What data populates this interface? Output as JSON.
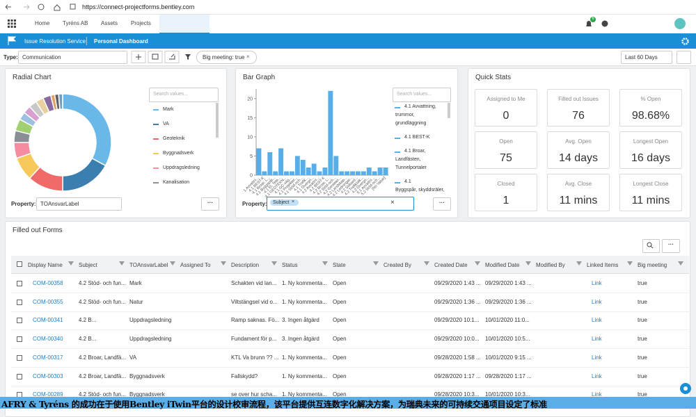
{
  "browser": {
    "url": "https://connect-projectforms.bentley.com"
  },
  "nav": {
    "items": [
      "Home",
      "Tyréns AB",
      "Assets",
      "Projects"
    ],
    "badge": "6"
  },
  "subnav": {
    "service": "Issue Resolution Service",
    "page": "Personal Dashboard"
  },
  "toolbar": {
    "type_label": "Type:",
    "type_value": "Communication",
    "filter_chip": "Big meeting: true",
    "date_range": "Last 60 Days"
  },
  "radial_chart": {
    "title": "Radial Chart",
    "search": "Search values...",
    "legend": [
      "Mark",
      "VA",
      "Geoteknik",
      "Byggnadsverk",
      "Uppdragsledning",
      "Kanalisation"
    ],
    "values": [
      25,
      13,
      9,
      6,
      4,
      3,
      3,
      2,
      2,
      2,
      2,
      2,
      1,
      1,
      1
    ],
    "colors": [
      "#6ab8e8",
      "#3a7fb0",
      "#f06a6a",
      "#f7c85a",
      "#f58ca0",
      "#8a8f96",
      "#a0d070",
      "#9ec0e0",
      "#d8a0d0",
      "#c8c8c8",
      "#e8d0a0",
      "#8a6aa0",
      "#e0a060",
      "#606060",
      "#70a0c0"
    ],
    "property_label": "Property:",
    "property_value": "TOAnsvarLabel"
  },
  "bar_graph": {
    "title": "Bar Graph",
    "search": "Search values...",
    "color": "#5aaee8",
    "categories": [
      "1.Avvattni...",
      "4.1 BEST-K",
      "4.1 Broar, L...",
      "4.1 Byggspår...",
      "4.1 El, Tele...",
      "4.1 GEOTEKN...",
      "4.1 GC-väg...",
      "4.1 Projekter...",
      "4.1 Stöd-och...",
      "4.1 Trafik...",
      "4.1 Övergri...",
      "4.2 Avvattni...",
      "4.2 BEST-K",
      "4.2 Broar, L...",
      "4.2 Stöd-och...",
      "4.2 Geotekn...",
      "4.2 Landskap...",
      "4.2 Ledningar...",
      "4.2 Sidoanl...",
      "4.2 Trafiksäk...",
      "4.2 Övergri...",
      "5.1 Avvattni...",
      "5.2 Stöd-och...",
      "[No Value]"
    ],
    "values": [
      7,
      1,
      6,
      1,
      7,
      1,
      1,
      5,
      4,
      2,
      3,
      1,
      2,
      22,
      5,
      1,
      1,
      1,
      1,
      1,
      2,
      1,
      2,
      2
    ],
    "ylim": [
      0,
      22.5
    ],
    "yticks": [
      0,
      5,
      10,
      15,
      20
    ],
    "legend": [
      "4.1 Avvattning,",
      "trummor,",
      "grundläggning",
      "4.1 BEST-K",
      "4.1 Broar,",
      "Landfästen,",
      "Tunnelportaler",
      "4.1",
      "Byggspår, skyddsräler,"
    ],
    "property_label": "Property:",
    "property_value": "Subject"
  },
  "quick_stats": {
    "title": "Quick Stats",
    "cards": [
      {
        "label": "Assigned to Me",
        "value": "0"
      },
      {
        "label": "Filled out Issues",
        "value": "76"
      },
      {
        "label": "% Open",
        "value": "98.68%"
      },
      {
        "label": "Open",
        "value": "75"
      },
      {
        "label": "Avg. Open",
        "value": "14 days"
      },
      {
        "label": "Longest Open",
        "value": "16 days"
      },
      {
        "label": "Closed",
        "value": "1"
      },
      {
        "label": "Avg. Close",
        "value": "11 mins"
      },
      {
        "label": "Longest Close",
        "value": "11 mins"
      }
    ]
  },
  "forms": {
    "title": "Filled out Forms",
    "columns": [
      "Display Name",
      "Subject",
      "TOAnsvarLabel",
      "Assigned To",
      "Description",
      "Status",
      "State",
      "Created By",
      "Created Date",
      "Modified Date",
      "Modified By",
      "Linked Items",
      "Big meeting"
    ],
    "rows": [
      {
        "display_name": "COM-00358",
        "subject": "4.2 Stöd- och fun...",
        "label": "Mark",
        "description": "Schakten vid lan...",
        "status": "1. Ny kommenta...",
        "state": "Open",
        "created_date": "09/29/2020 1:43 ...",
        "modified_date": "09/29/2020 1:43 ...",
        "linked": "Link",
        "big_meeting": "true"
      },
      {
        "display_name": "COM-00355",
        "subject": "4.2 Stöd- och fun...",
        "label": "Natur",
        "description": "Viltstängsel vid o...",
        "status": "1. Ny kommenta...",
        "state": "Open",
        "created_date": "09/29/2020 1:36 ...",
        "modified_date": "09/29/2020 1:36 ...",
        "linked": "Link",
        "big_meeting": "true"
      },
      {
        "display_name": "COM-00341",
        "subject": "4.2           B...",
        "label": "Uppdragsledning",
        "description": "Ramp saknas. Fö...",
        "status": "3. Ingen åtgärd",
        "state": "Open",
        "created_date": "09/29/2020 10:1...",
        "modified_date": "10/01/2020 11:0...",
        "linked": "Link",
        "big_meeting": "true"
      },
      {
        "display_name": "COM-00340",
        "subject": "4.2           B...",
        "label": "Uppdragsledning",
        "description": "Fundament för p...",
        "status": "3. Ingen åtgärd",
        "state": "Open",
        "created_date": "09/29/2020 10:0...",
        "modified_date": "10/01/2020 10:5...",
        "linked": "Link",
        "big_meeting": "true"
      },
      {
        "display_name": "COM-00317",
        "subject": "4.2 Broar, Landfä...",
        "label": "VA",
        "description": "KTL Va brunn ?? ...",
        "status": "1. Ny kommenta...",
        "state": "Open",
        "created_date": "09/28/2020 1:58 ...",
        "modified_date": "10/01/2020 9:15 ...",
        "linked": "Link",
        "big_meeting": "true"
      },
      {
        "display_name": "COM-00303",
        "subject": "4.2 Broar, Landfä...",
        "label": "Byggnadsverk",
        "description": "Fallskydd?",
        "status": "1. Ny kommenta...",
        "state": "Open",
        "created_date": "09/28/2020 1:17 ...",
        "modified_date": "09/28/2020 1:17 ...",
        "linked": "Link",
        "big_meeting": "true"
      },
      {
        "display_name": "COM-00289",
        "subject": "4.2 Stöd- och fun...",
        "label": "Byggnadsverk",
        "description": "se over hur scha...",
        "status": "1. Ny kommenta...",
        "state": "Open",
        "created_date": "09/28/2020 10:3...",
        "modified_date": "10/01/2020 10:3...",
        "linked": "Link",
        "big_meeting": "true"
      }
    ]
  },
  "caption": "AFRY & Tyréns 的成功在于使用Bentley iTwin平台的设计校审流程，该平台提供互连数字化解决方案，为瑞典未来的可持续交通项目设定了标准"
}
